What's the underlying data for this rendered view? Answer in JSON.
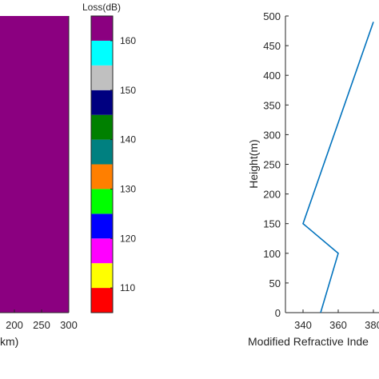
{
  "chart_data": [
    {
      "type": "heatmap",
      "description_visible": "propagation loss map (cropped)",
      "fill_color": "#8b0080",
      "xlabel": "km)",
      "x_ticks": [
        200,
        250,
        300
      ],
      "colorbar": {
        "title": "Loss(dB)",
        "range": [
          105,
          165
        ],
        "ticks": [
          110,
          120,
          130,
          140,
          150,
          160
        ],
        "bins": [
          {
            "from": 105,
            "to": 110,
            "color": "#ff0000"
          },
          {
            "from": 110,
            "to": 115,
            "color": "#ffff00"
          },
          {
            "from": 115,
            "to": 120,
            "color": "#ff00ff"
          },
          {
            "from": 120,
            "to": 125,
            "color": "#0000ff"
          },
          {
            "from": 125,
            "to": 130,
            "color": "#00ff00"
          },
          {
            "from": 130,
            "to": 135,
            "color": "#ff7f00"
          },
          {
            "from": 135,
            "to": 140,
            "color": "#008080"
          },
          {
            "from": 140,
            "to": 145,
            "color": "#008000"
          },
          {
            "from": 145,
            "to": 150,
            "color": "#000080"
          },
          {
            "from": 150,
            "to": 155,
            "color": "#c0c0c0"
          },
          {
            "from": 155,
            "to": 160,
            "color": "#00ffff"
          },
          {
            "from": 160,
            "to": 165,
            "color": "#8b0080"
          }
        ]
      }
    },
    {
      "type": "line",
      "xlabel": "Modified Refractive Inde",
      "ylabel": "Height(m)",
      "xlim": [
        330,
        380
      ],
      "ylim": [
        0,
        500
      ],
      "x_ticks": [
        340,
        360,
        380
      ],
      "y_ticks": [
        0,
        50,
        100,
        150,
        200,
        250,
        300,
        350,
        400,
        450,
        500
      ],
      "series": [
        {
          "color": "#0072bd",
          "x": [
            350,
            360,
            340,
            380
          ],
          "y": [
            0,
            100,
            150,
            490
          ]
        }
      ]
    }
  ]
}
